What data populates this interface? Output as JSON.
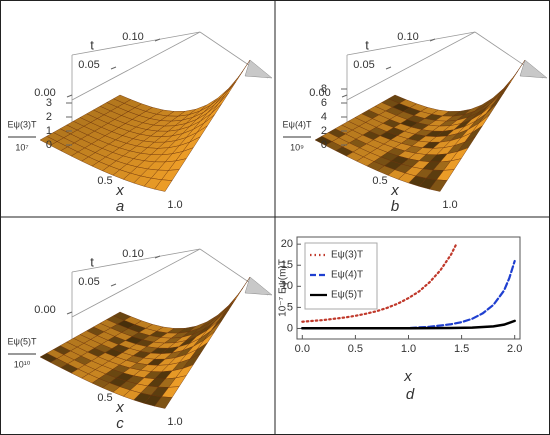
{
  "chart_data": [
    {
      "type": "surface",
      "label": "a",
      "xlabel": "x",
      "tlabel": "t",
      "zlabel": "Eψ(3)T",
      "zscale": "10⁷",
      "xlim": [
        0,
        1
      ],
      "xticks": [
        0.5,
        {
          "value": 1,
          "label": "1.0"
        }
      ],
      "tlim": [
        0,
        0.1
      ],
      "tticks": [
        {
          "value": 0,
          "label": "0.00"
        },
        0.05,
        {
          "value": 0.1,
          "label": "0.10"
        }
      ],
      "zlim": [
        0,
        4
      ],
      "zticks": [
        0,
        1,
        2,
        3
      ],
      "rough": false
    },
    {
      "type": "surface",
      "label": "b",
      "xlabel": "x",
      "tlabel": "t",
      "zlabel": "Eψ(4)T",
      "zscale": "10⁹",
      "xlim": [
        0,
        1
      ],
      "xticks": [
        0.5,
        {
          "value": 1,
          "label": "1.0"
        }
      ],
      "tlim": [
        0,
        0.1
      ],
      "tticks": [
        {
          "value": 0,
          "label": "0.00"
        },
        0.05,
        {
          "value": 0.1,
          "label": "0.10"
        }
      ],
      "zlim": [
        0,
        8
      ],
      "zticks": [
        0,
        2,
        4,
        6,
        8
      ],
      "rough": true
    },
    {
      "type": "surface",
      "label": "c",
      "xlabel": "x",
      "tlabel": "t",
      "zlabel": "Eψ(5)T",
      "zscale": "10¹⁰",
      "xlim": [
        0,
        1
      ],
      "xticks": [
        0.5,
        {
          "value": 1,
          "label": "1.0"
        }
      ],
      "tlim": [
        0,
        0.1
      ],
      "tticks": [
        {
          "value": 0,
          "label": "0.00"
        },
        0.05,
        {
          "value": 0.1,
          "label": "0.10"
        }
      ],
      "rough": true
    },
    {
      "type": "line",
      "label": "d",
      "xlabel": "x",
      "ylabel": "10⁻⁷ Eψ(m)T",
      "xlim": [
        -0.05,
        2.05
      ],
      "xticks": [
        {
          "value": 0,
          "label": "0.0"
        },
        0.5,
        {
          "value": 1,
          "label": "1.0"
        },
        1.5,
        {
          "value": 2,
          "label": "2.0"
        }
      ],
      "ylim": [
        -2.5,
        21.7
      ],
      "yticks": [
        0,
        5,
        10,
        15,
        20
      ],
      "legend": "upper left",
      "series": [
        {
          "name": "Eψ(3)T",
          "color": "#c0392b",
          "style": "dotted",
          "x": [
            0,
            0.1,
            0.2,
            0.3,
            0.4,
            0.5,
            0.6,
            0.7,
            0.8,
            0.9,
            1.0,
            1.1,
            1.2,
            1.3,
            1.4,
            1.45
          ],
          "values": [
            1.6,
            1.8,
            2.0,
            2.3,
            2.6,
            3.0,
            3.5,
            4.1,
            4.9,
            5.9,
            7.2,
            8.8,
            11,
            13.8,
            17.5,
            20
          ]
        },
        {
          "name": "Eψ(4)T",
          "color": "#1f3fd0",
          "style": "dashed",
          "x": [
            0,
            0.5,
            1.0,
            1.2,
            1.4,
            1.5,
            1.6,
            1.7,
            1.8,
            1.9,
            1.95,
            2.0
          ],
          "values": [
            0.05,
            0.05,
            0.1,
            0.4,
            1,
            1.5,
            2.3,
            3.6,
            5.6,
            9,
            12,
            16
          ]
        },
        {
          "name": "Eψ(5)T",
          "color": "#000000",
          "style": "solid",
          "x": [
            0,
            0.5,
            1.0,
            1.4,
            1.6,
            1.8,
            1.9,
            2.0
          ],
          "values": [
            0.05,
            0.05,
            0.05,
            0.1,
            0.2,
            0.5,
            0.9,
            1.8
          ]
        }
      ]
    }
  ]
}
